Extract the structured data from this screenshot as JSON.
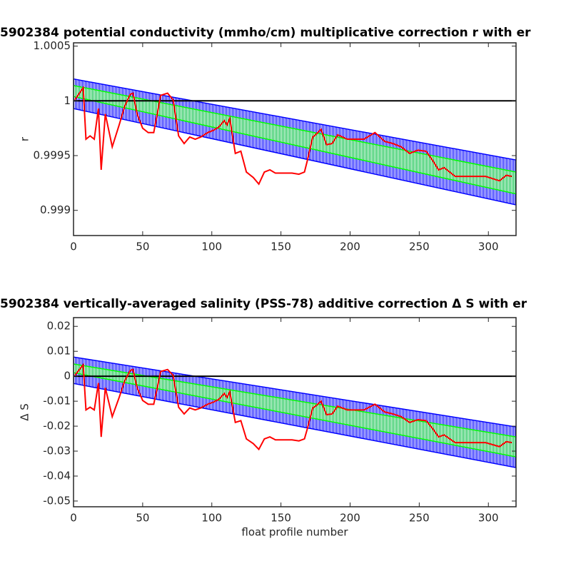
{
  "chart_data": [
    {
      "type": "line",
      "title": "5902384 potential conductivity (mmho/cm) multiplicative correction r with er",
      "ylabel": "r",
      "xlim": [
        0,
        320
      ],
      "xticks": [
        0,
        50,
        100,
        150,
        200,
        250,
        300
      ],
      "ylim": [
        0.99877,
        1.00053
      ],
      "yticks": [
        1.0005,
        1,
        0.9995,
        0.999
      ],
      "hline": 1,
      "hline_color": "#000000",
      "bands": [
        {
          "color": "#0000ff",
          "x": [
            0,
            320
          ],
          "upper": [
            1.0002,
            0.99946
          ],
          "lower": [
            0.99993,
            0.99905
          ]
        },
        {
          "color": "#00ff00",
          "x": [
            0,
            320
          ],
          "upper": [
            1.00014,
            0.99935
          ],
          "lower": [
            1.00004,
            0.99915
          ]
        }
      ],
      "series": [
        {
          "color": "#ff0000",
          "x": [
            1,
            7,
            9,
            12,
            15,
            18,
            20,
            23,
            28,
            33,
            37,
            41,
            43,
            46,
            50,
            54,
            58,
            61,
            63,
            68,
            72,
            76,
            80,
            84,
            88,
            92,
            97,
            101,
            105,
            109,
            111,
            113,
            117,
            121,
            125,
            130,
            134,
            138,
            142,
            146,
            150,
            154,
            158,
            163,
            167,
            169,
            173,
            175,
            179,
            181,
            183,
            187,
            191,
            198,
            204,
            210,
            218,
            225,
            231,
            237,
            243,
            249,
            255,
            260,
            264,
            268,
            276,
            287,
            298,
            308,
            313,
            317
          ],
          "values": [
            1.00001,
            1.00012,
            0.99965,
            0.99968,
            0.99965,
            0.99993,
            0.99937,
            0.99988,
            0.99958,
            0.99978,
            0.99995,
            1.00006,
            1.00007,
            0.99988,
            0.99975,
            0.99971,
            0.99971,
            0.99991,
            1.00005,
            1.00007,
            1.00001,
            0.99968,
            0.99961,
            0.99967,
            0.99965,
            0.99967,
            0.99971,
            0.99973,
            0.99976,
            0.99982,
            0.99978,
            0.99984,
            0.99952,
            0.99954,
            0.99935,
            0.9993,
            0.99924,
            0.99935,
            0.99937,
            0.99934,
            0.99934,
            0.99934,
            0.99934,
            0.99933,
            0.99935,
            0.99945,
            0.99967,
            0.99969,
            0.99974,
            0.99967,
            0.9996,
            0.99961,
            0.99969,
            0.99965,
            0.99965,
            0.99965,
            0.99971,
            0.99963,
            0.99961,
            0.99958,
            0.99952,
            0.99955,
            0.99954,
            0.99945,
            0.99937,
            0.99939,
            0.99931,
            0.99931,
            0.99931,
            0.99927,
            0.99932,
            0.99931
          ]
        }
      ]
    },
    {
      "type": "line",
      "title": "5902384 vertically-averaged salinity (PSS-78) additive correction Δ S with er",
      "ylabel": "Δ S",
      "xlabel": "float profile number",
      "xlim": [
        0,
        320
      ],
      "xticks": [
        0,
        50,
        100,
        150,
        200,
        250,
        300
      ],
      "ylim": [
        -0.0523,
        0.0235
      ],
      "yticks": [
        0.02,
        0.01,
        0,
        -0.01,
        -0.02,
        -0.03,
        -0.04,
        -0.05
      ],
      "hline": 0,
      "hline_color": "#000000",
      "bands": [
        {
          "color": "#0000ff",
          "x": [
            0,
            320
          ],
          "upper": [
            0.0077,
            -0.0203
          ],
          "lower": [
            -0.0029,
            -0.0366
          ]
        },
        {
          "color": "#00ff00",
          "x": [
            0,
            320
          ],
          "upper": [
            0.0049,
            -0.0243
          ],
          "lower": [
            0.0014,
            -0.0323
          ]
        }
      ],
      "series": [
        {
          "color": "#ff0000",
          "x": [
            1,
            7,
            9,
            12,
            15,
            18,
            20,
            23,
            28,
            33,
            37,
            41,
            43,
            46,
            50,
            54,
            58,
            61,
            63,
            68,
            72,
            76,
            80,
            84,
            88,
            92,
            97,
            101,
            105,
            109,
            111,
            113,
            117,
            121,
            125,
            130,
            134,
            138,
            142,
            146,
            150,
            154,
            158,
            163,
            167,
            169,
            173,
            175,
            179,
            181,
            183,
            187,
            191,
            198,
            204,
            210,
            218,
            225,
            231,
            237,
            243,
            249,
            255,
            260,
            264,
            268,
            276,
            287,
            298,
            308,
            313,
            317
          ],
          "values": [
            0.0004,
            0.0046,
            -0.0135,
            -0.0124,
            -0.0135,
            -0.0027,
            -0.0243,
            -0.0046,
            -0.0162,
            -0.0085,
            -0.0019,
            0.0023,
            0.0027,
            -0.0046,
            -0.0097,
            -0.0112,
            -0.0112,
            -0.0035,
            0.0019,
            0.0027,
            0.0004,
            -0.0124,
            -0.0151,
            -0.0127,
            -0.0135,
            -0.0127,
            -0.0112,
            -0.0104,
            -0.0093,
            -0.0069,
            -0.0085,
            -0.0062,
            -0.0185,
            -0.0178,
            -0.0251,
            -0.027,
            -0.0293,
            -0.0251,
            -0.0243,
            -0.0255,
            -0.0255,
            -0.0255,
            -0.0255,
            -0.0259,
            -0.0251,
            -0.0212,
            -0.0127,
            -0.012,
            -0.01,
            -0.0127,
            -0.0154,
            -0.0151,
            -0.012,
            -0.0135,
            -0.0135,
            -0.0135,
            -0.0112,
            -0.0143,
            -0.0151,
            -0.0162,
            -0.0185,
            -0.0174,
            -0.0178,
            -0.0212,
            -0.0243,
            -0.0235,
            -0.0266,
            -0.0266,
            -0.0266,
            -0.0282,
            -0.0262,
            -0.0266
          ]
        }
      ]
    }
  ]
}
